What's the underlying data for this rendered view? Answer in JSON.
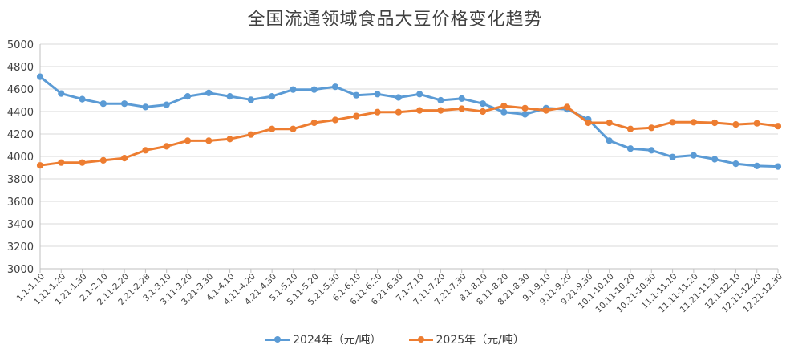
{
  "chart_data": {
    "type": "line",
    "title": "全国流通领域食品大豆价格变化趋势",
    "xlabel": "",
    "ylabel": "",
    "ylim": [
      3000,
      5000
    ],
    "yticks": [
      3000,
      3200,
      3400,
      3600,
      3800,
      4000,
      4200,
      4400,
      4600,
      4800,
      5000
    ],
    "grid": "horizontal",
    "legend_position": "bottom",
    "categories": [
      "1.1-1.10",
      "1.11-1.20",
      "1.21-1.30",
      "2.1-2.10",
      "2.11-2.20",
      "2.21-2.28",
      "3.1-3.10",
      "3.11-3.20",
      "3.21-3.30",
      "4.1-4.10",
      "4.11-4.20",
      "4.21-4.30",
      "5.1-5.10",
      "5.11-5.20",
      "5.21-5.30",
      "6.1-6.10",
      "6.11-6.20",
      "6.21-6.30",
      "7.1-7.10",
      "7.11-7.20",
      "7.21-7.30",
      "8.1-8.10",
      "8.11-8.20",
      "8.21-8.30",
      "9.1-9.10",
      "9.11-9.20",
      "9.21-9.30",
      "10.1-10.10",
      "10.11-10.20",
      "10.21-10.30",
      "11.1-11.10",
      "11.11-11.20",
      "11.21-11.30",
      "12.1-12.10",
      "12.11-12.20",
      "12.21-12.30"
    ],
    "series": [
      {
        "name": "2024年（元/吨）",
        "color": "#5b9bd5",
        "values": [
          4710,
          4560,
          4510,
          4470,
          4470,
          4440,
          4460,
          4535,
          4565,
          4535,
          4505,
          4535,
          4595,
          4595,
          4620,
          4545,
          4555,
          4525,
          4555,
          4500,
          4515,
          4470,
          4395,
          4375,
          4430,
          4420,
          4330,
          4140,
          4070,
          4055,
          3995,
          4010,
          3975,
          3935,
          3915,
          3910
        ]
      },
      {
        "name": "2025年（元/吨）",
        "color": "#ed7d31",
        "values": [
          3920,
          3945,
          3945,
          3965,
          3985,
          4055,
          4090,
          4140,
          4140,
          4155,
          4195,
          4245,
          4245,
          4300,
          4325,
          4360,
          4395,
          4395,
          4410,
          4410,
          4425,
          4400,
          4450,
          4430,
          4410,
          4440,
          4300,
          4300,
          4245,
          4255,
          4305,
          4305,
          4300,
          4285,
          4295,
          4270
        ]
      }
    ]
  }
}
